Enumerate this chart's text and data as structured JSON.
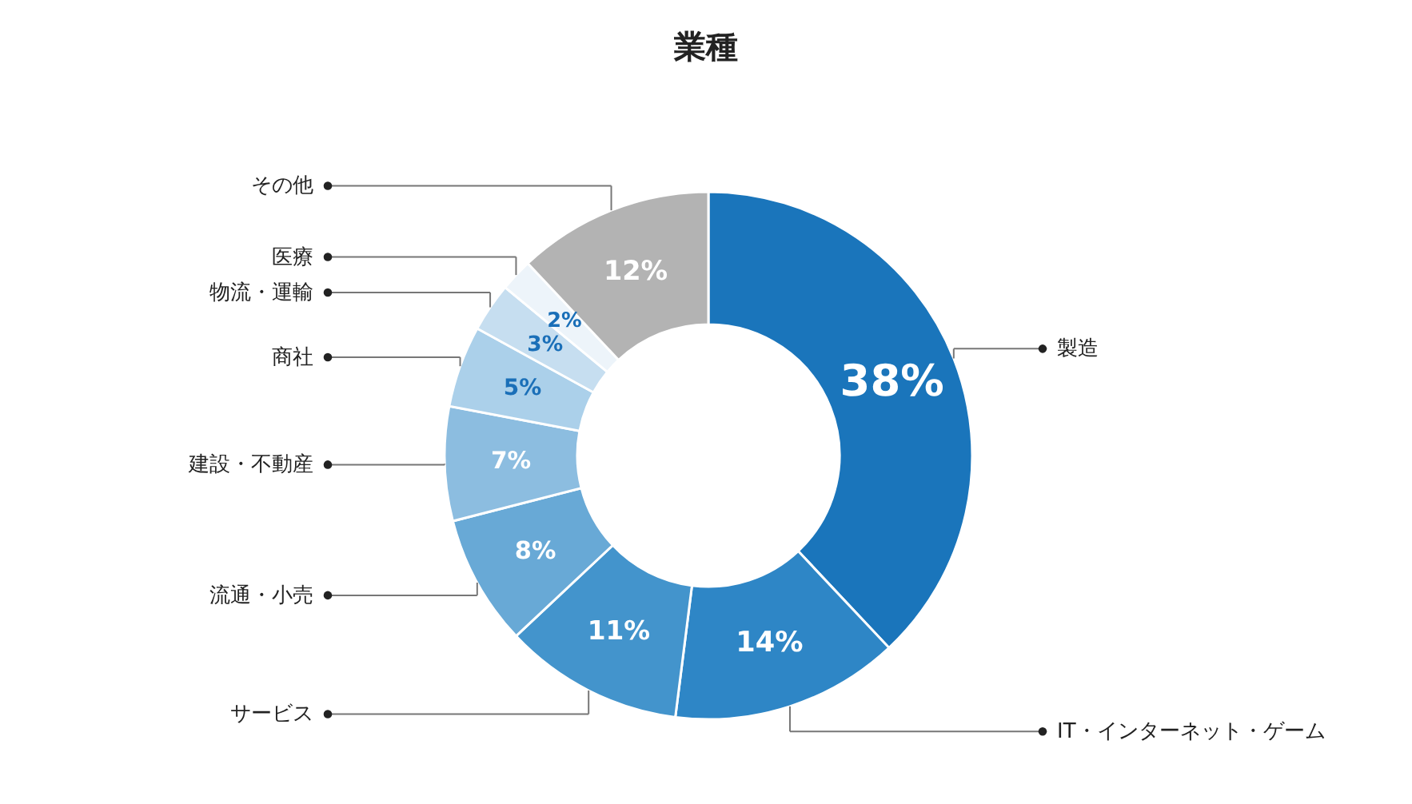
{
  "chart_data": {
    "type": "donut",
    "title": "業種",
    "categories": [
      "製造",
      "IT・インターネット・ゲーム",
      "サービス",
      "流通・小売",
      "建設・不動産",
      "商社",
      "物流・運輸",
      "医療",
      "その他"
    ],
    "values": [
      38,
      14,
      11,
      8,
      7,
      5,
      3,
      2,
      12
    ],
    "value_labels": [
      "38%",
      "14%",
      "11%",
      "8%",
      "7%",
      "5%",
      "3%",
      "2%",
      "12%"
    ],
    "colors": [
      "#1a75bb",
      "#2e86c6",
      "#4394cc",
      "#68a9d6",
      "#8cbde0",
      "#abd0ea",
      "#c6def0",
      "#edf4fa",
      "#b3b3b3"
    ]
  }
}
